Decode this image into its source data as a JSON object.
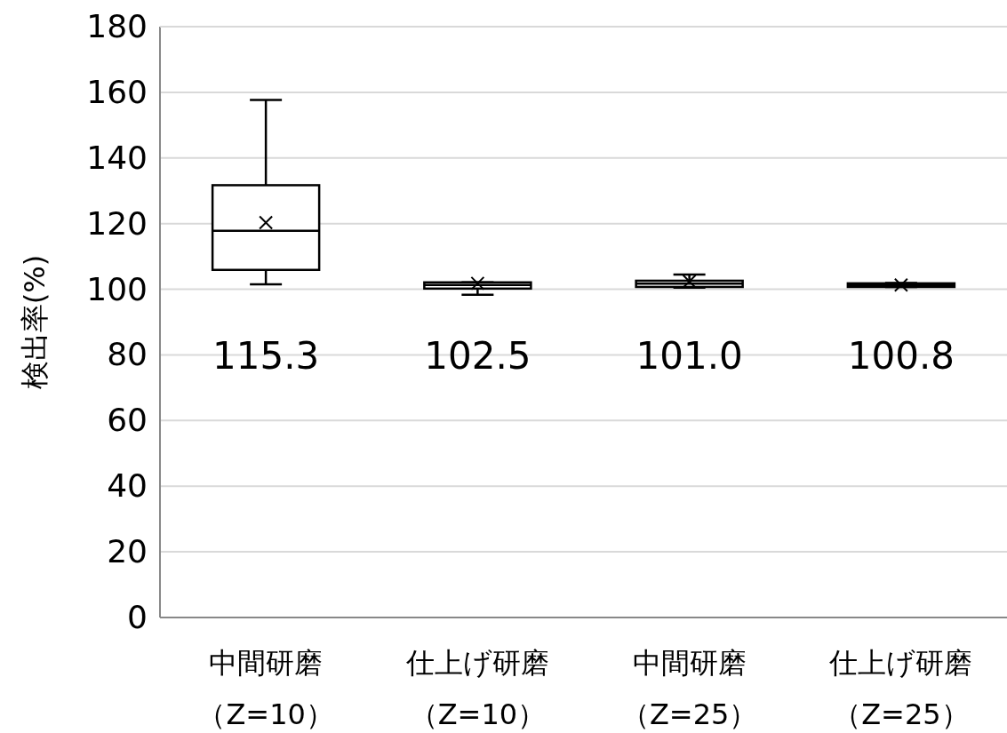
{
  "chart_data": {
    "type": "box",
    "ylabel": "検出率(%)",
    "categories": [
      "中間研磨（Z=10）",
      "仕上げ研磨（Z=10）",
      "中間研磨（Z=25）",
      "仕上げ研磨（Z=25）"
    ],
    "boxes": [
      {
        "low": 101.5,
        "q1": 105.9,
        "median": 117.8,
        "q3": 131.7,
        "high": 157.7,
        "mean": 120.3
      },
      {
        "low": 98.3,
        "q1": 100.2,
        "median": 101.3,
        "q3": 102.1,
        "high": 102.1,
        "mean": 101.8
      },
      {
        "low": 100.5,
        "q1": 100.7,
        "median": 101.7,
        "q3": 102.6,
        "high": 104.5,
        "mean": 102.4
      },
      {
        "low": 100.7,
        "q1": 100.7,
        "median": 101.3,
        "q3": 101.8,
        "high": 101.9,
        "mean": 101.3
      }
    ],
    "ylim": [
      0,
      180
    ],
    "yticks": [
      0,
      20,
      40,
      60,
      80,
      100,
      120,
      140,
      160,
      180
    ],
    "grid": "y",
    "marker": "cross",
    "annotations": [
      "115.3",
      "102.5",
      "101.0",
      "100.8"
    ]
  }
}
